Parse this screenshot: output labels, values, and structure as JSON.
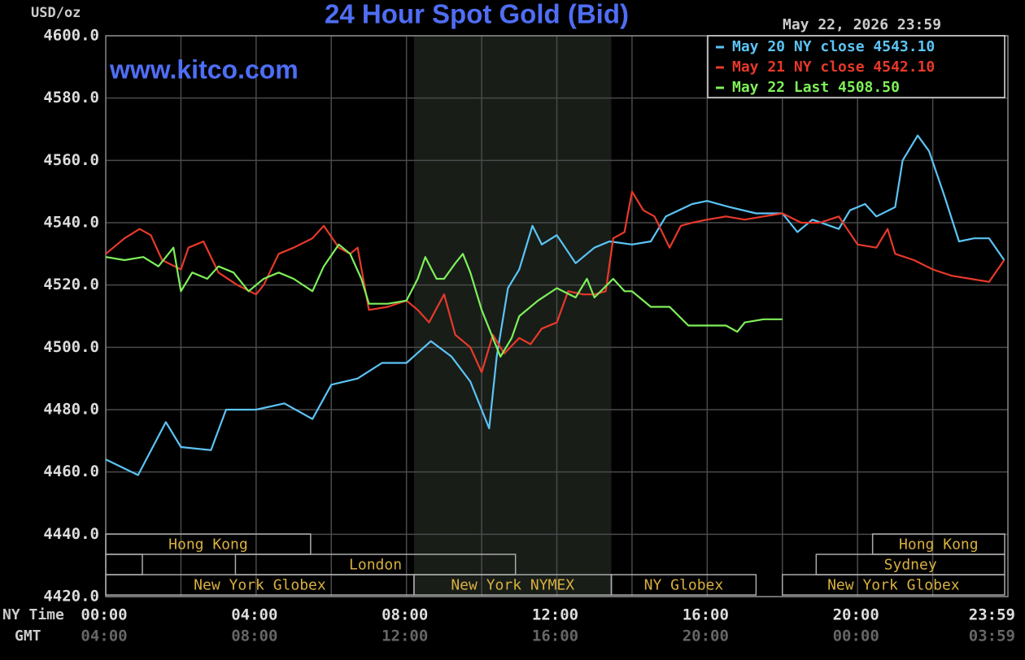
{
  "chart_data": {
    "type": "line",
    "title": "24 Hour Spot Gold (Bid)",
    "y_unit": "USD/oz",
    "timestamp": "May 22, 2026 23:59",
    "watermark": "www.kitco.com",
    "x_axis_labels": [
      "NY Time",
      "GMT"
    ],
    "xlim": [
      0,
      24
    ],
    "ylim": [
      4420,
      4600
    ],
    "grid": true,
    "legend": "upper right",
    "xgrid": [
      2,
      4,
      6,
      8,
      10,
      12,
      14,
      16,
      18,
      20,
      22
    ],
    "xticks": [
      {
        "value": 0,
        "label": "00:00"
      },
      {
        "value": 4,
        "label": "04:00"
      },
      {
        "value": 8,
        "label": "08:00"
      },
      {
        "value": 12,
        "label": "12:00"
      },
      {
        "value": 16,
        "label": "16:00"
      },
      {
        "value": 20,
        "label": "20:00"
      },
      {
        "value": 23.983,
        "label": "23:59"
      }
    ],
    "gmt_ticks": [
      {
        "value": 0,
        "label": "04:00"
      },
      {
        "value": 4,
        "label": "08:00"
      },
      {
        "value": 8,
        "label": "12:00"
      },
      {
        "value": 12,
        "label": "16:00"
      },
      {
        "value": 16,
        "label": "20:00"
      },
      {
        "value": 20,
        "label": "00:00"
      },
      {
        "value": 23.983,
        "label": "03:59"
      }
    ],
    "yticks": [
      {
        "value": 4600,
        "label": "4600.0"
      },
      {
        "value": 4580,
        "label": "4580.0"
      },
      {
        "value": 4560,
        "label": "4560.0"
      },
      {
        "value": 4540,
        "label": "4540.0"
      },
      {
        "value": 4520,
        "label": "4520.0"
      },
      {
        "value": 4500,
        "label": "4500.0"
      },
      {
        "value": 4480,
        "label": "4480.0"
      },
      {
        "value": 4460,
        "label": "4460.0"
      },
      {
        "value": 4440,
        "label": "4440.0"
      },
      {
        "value": 4420,
        "label": "4420.0"
      }
    ],
    "shaded": [
      8.2,
      13.45
    ],
    "sessions": [
      {
        "label": "Hong Kong",
        "start": 0,
        "end": 5.45
      },
      {
        "label": "London",
        "start": 3.45,
        "end": 10.9
      },
      {
        "label": "New York Globex",
        "start": 0,
        "end": 8.2
      },
      {
        "label": "New York NYMEX",
        "start": 8.2,
        "end": 13.45
      },
      {
        "label": "NY Globex",
        "start": 13.45,
        "end": 17.3
      },
      {
        "label": "Hong Kong",
        "start": 20.4,
        "end": 24
      },
      {
        "label": "Sydney",
        "start": 18.9,
        "end": 24
      },
      {
        "label": "New York Globex",
        "start": 18,
        "end": 24
      }
    ],
    "series": [
      {
        "name": "May 20 NY close 4543.10",
        "color": "#5cc4f5",
        "x": [
          0,
          0.86,
          1.6,
          2,
          2.8,
          3.2,
          4,
          4.75,
          5.5,
          6,
          6.7,
          7.35,
          8,
          8.65,
          9.2,
          9.7,
          10.2,
          10.4,
          10.7,
          11,
          11.35,
          11.6,
          12,
          12.5,
          13,
          13.4,
          14,
          14.5,
          14.9,
          15.6,
          16,
          16.6,
          17.3,
          18,
          18.4,
          18.8,
          19.5,
          19.8,
          20.2,
          20.5,
          21,
          21.2,
          21.6,
          21.9,
          22.3,
          22.7,
          23.1,
          23.5,
          23.9
        ],
        "values": [
          4464,
          4459,
          4476,
          4468,
          4467,
          4480,
          4480,
          4482,
          4477,
          4488,
          4490,
          4495,
          4495,
          4502,
          4497,
          4489,
          4474,
          4497,
          4519,
          4525,
          4539,
          4533,
          4536,
          4527,
          4532,
          4534,
          4533,
          4534,
          4542,
          4546,
          4547,
          4545,
          4543,
          4543,
          4537,
          4541,
          4538,
          4544,
          4546,
          4542,
          4545,
          4560,
          4568,
          4563,
          4549,
          4534,
          4535,
          4535,
          4528
        ]
      },
      {
        "name": "May 21 NY close 4542.10",
        "color": "#e8392a",
        "x": [
          0,
          0.5,
          0.9,
          1.2,
          1.5,
          2,
          2.2,
          2.6,
          3,
          3.5,
          4,
          4.2,
          4.6,
          5,
          5.5,
          5.8,
          6.2,
          6.5,
          6.7,
          7,
          7.5,
          8,
          8.3,
          8.6,
          9,
          9.3,
          9.7,
          10,
          10.3,
          10.6,
          11,
          11.3,
          11.6,
          12,
          12.3,
          12.7,
          13,
          13.3,
          13.5,
          13.8,
          14,
          14.3,
          14.6,
          15,
          15.3,
          15.6,
          16,
          16.5,
          17,
          17.5,
          18,
          18.5,
          19,
          19.5,
          20,
          20.5,
          20.8,
          21,
          21.5,
          22,
          22.5,
          23,
          23.5,
          23.9
        ],
        "values": [
          4530,
          4535,
          4538,
          4536,
          4528,
          4525,
          4532,
          4534,
          4524,
          4520,
          4517,
          4520,
          4530,
          4532,
          4535,
          4539,
          4532,
          4530,
          4532,
          4512,
          4513,
          4515,
          4512,
          4508,
          4517,
          4504,
          4500,
          4492,
          4504,
          4498,
          4503,
          4501,
          4506,
          4508,
          4518,
          4517,
          4517,
          4518,
          4535,
          4537,
          4550,
          4544,
          4542,
          4532,
          4539,
          4540,
          4541,
          4542,
          4541,
          4542,
          4543,
          4540,
          4540,
          4542,
          4533,
          4532,
          4538,
          4530,
          4528,
          4525,
          4523,
          4522,
          4521,
          4528
        ]
      },
      {
        "name": "May 22 Last 4508.50",
        "color": "#7ef05a",
        "x": [
          0,
          0.5,
          1,
          1.4,
          1.8,
          2,
          2.3,
          2.7,
          3,
          3.4,
          3.8,
          4.2,
          4.6,
          5,
          5.5,
          5.8,
          6.2,
          6.5,
          6.8,
          7,
          7.5,
          8,
          8.3,
          8.5,
          8.8,
          9,
          9.3,
          9.5,
          9.7,
          10,
          10.3,
          10.5,
          10.8,
          11,
          11.5,
          12,
          12.5,
          12.8,
          13,
          13.5,
          13.8,
          14,
          14.5,
          15,
          15.5,
          16,
          16.5,
          16.8,
          17,
          17.5,
          18
        ],
        "values": [
          4529,
          4528,
          4529,
          4526,
          4532,
          4518,
          4524,
          4522,
          4526,
          4524,
          4518,
          4522,
          4524,
          4522,
          4518,
          4526,
          4533,
          4530,
          4522,
          4514,
          4514,
          4515,
          4522,
          4529,
          4522,
          4522,
          4527,
          4530,
          4524,
          4512,
          4503,
          4497,
          4503,
          4510,
          4515,
          4519,
          4516,
          4522,
          4516,
          4522,
          4518,
          4518,
          4513,
          4513,
          4507,
          4507,
          4507,
          4505,
          4508,
          4509,
          4509
        ]
      }
    ]
  }
}
